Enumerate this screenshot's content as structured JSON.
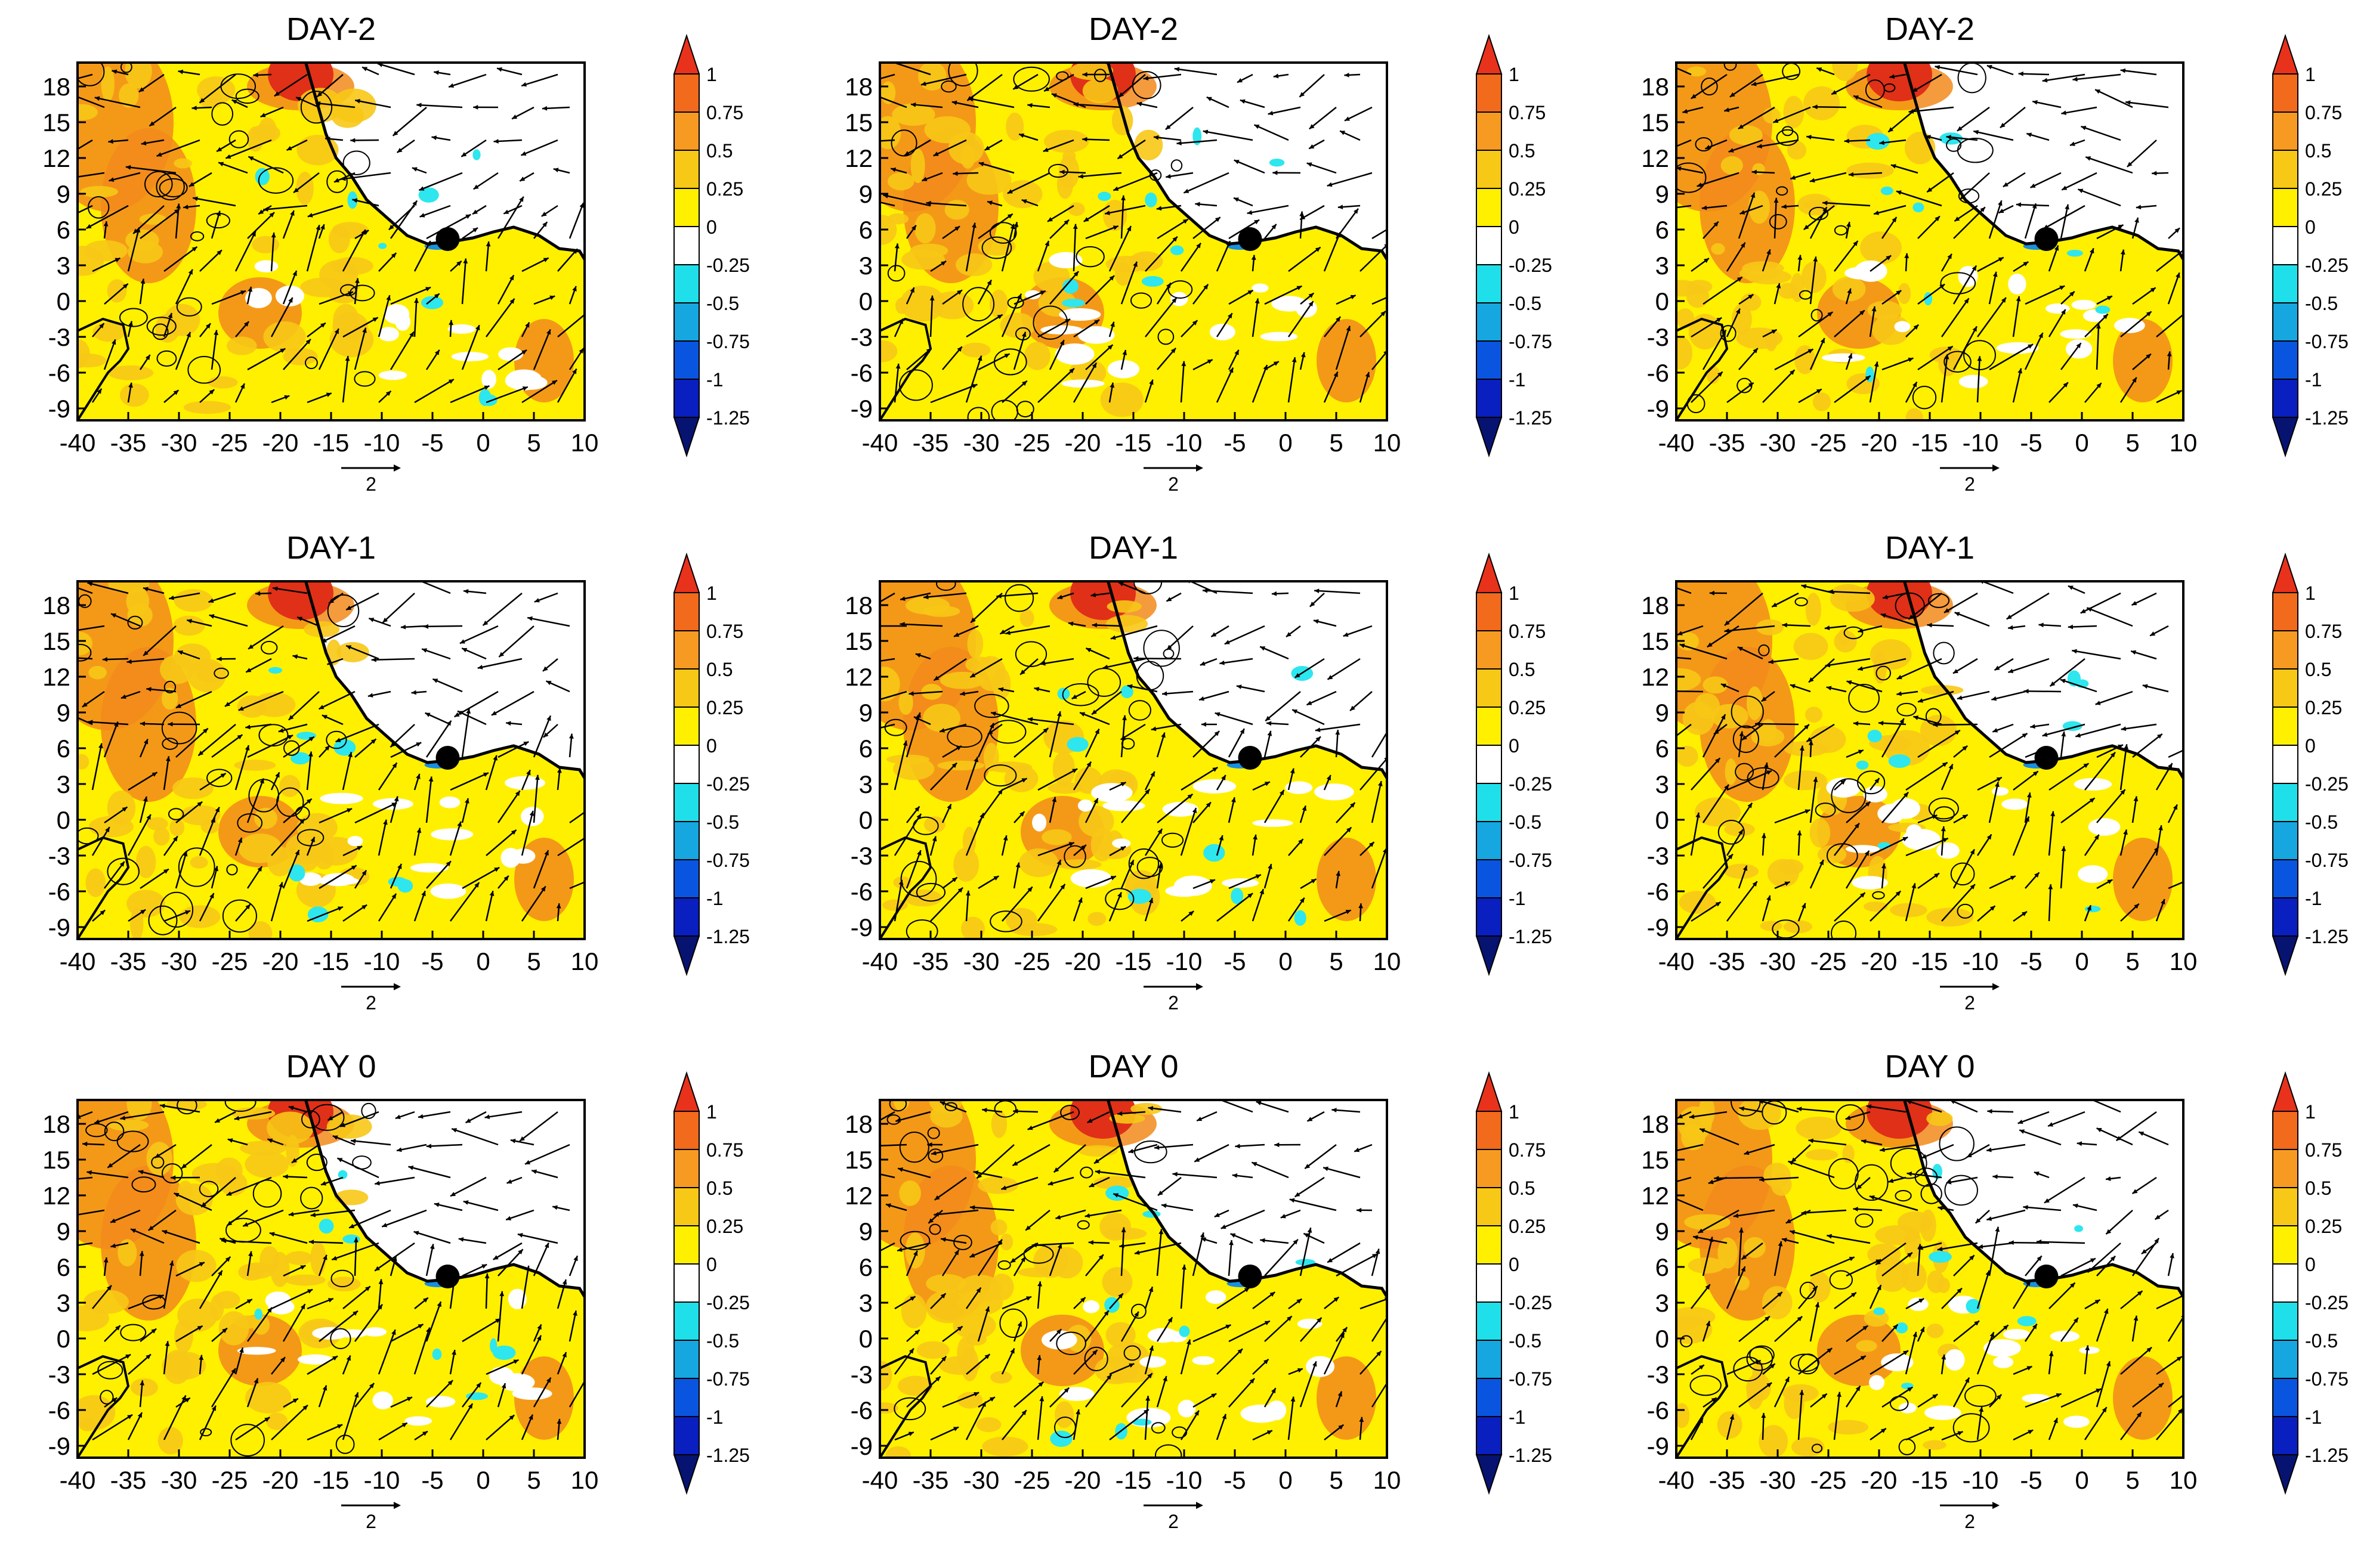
{
  "figure": {
    "panels": [
      {
        "title": "DAY-2",
        "row": 0,
        "col": 0
      },
      {
        "title": "DAY-2",
        "row": 0,
        "col": 1
      },
      {
        "title": "DAY-2",
        "row": 0,
        "col": 2
      },
      {
        "title": "DAY-1",
        "row": 1,
        "col": 0
      },
      {
        "title": "DAY-1",
        "row": 1,
        "col": 1
      },
      {
        "title": "DAY-1",
        "row": 1,
        "col": 2
      },
      {
        "title": "DAY 0",
        "row": 2,
        "col": 0
      },
      {
        "title": "DAY 0",
        "row": 2,
        "col": 1
      },
      {
        "title": "DAY 0",
        "row": 2,
        "col": 2
      }
    ],
    "x_ticks": [
      "-40",
      "-35",
      "-30",
      "-25",
      "-20",
      "-15",
      "-10",
      "-5",
      "0",
      "5",
      "10"
    ],
    "y_ticks": [
      "18",
      "15",
      "12",
      "9",
      "6",
      "3",
      "0",
      "-3",
      "-6",
      "-9"
    ],
    "x_range": [
      -40,
      10
    ],
    "y_range": [
      -10,
      20
    ],
    "reference_vector_label": "2",
    "colorbar": {
      "levels": [
        "1",
        "0.75",
        "0.5",
        "0.25",
        "0",
        "-0.25",
        "-0.5",
        "-0.75",
        "-1",
        "-1.25"
      ],
      "colors": [
        "#e8321c",
        "#f26a1b",
        "#f79a22",
        "#f7c816",
        "#fff000",
        "#ffffff",
        "#1fe0ea",
        "#16a6e0",
        "#0a55e0",
        "#0a1fc0",
        "#071370"
      ]
    },
    "marker": {
      "lon": -3.5,
      "lat": 5.2
    },
    "palette": {
      "land_dry": "#fff000",
      "warm": "#f7c816",
      "orange": "#f28a1b",
      "red": "#e03018",
      "cyan": "#2ee6ee",
      "blue": "#1a8fe0",
      "ocean": "#ffffff",
      "line": "#000000"
    }
  }
}
